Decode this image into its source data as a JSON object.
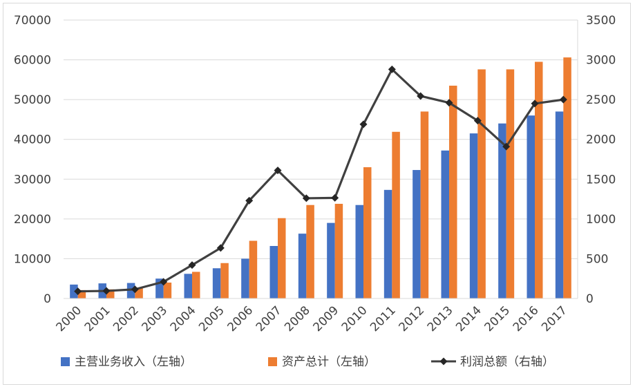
{
  "chart_data": {
    "type": "bar",
    "categories": [
      "2000",
      "2001",
      "2002",
      "2003",
      "2004",
      "2005",
      "2006",
      "2007",
      "2008",
      "2009",
      "2010",
      "2011",
      "2012",
      "2013",
      "2014",
      "2015",
      "2016",
      "2017"
    ],
    "series": [
      {
        "name": "主营业务收入（左轴）",
        "type": "bar",
        "axis": "left",
        "color": "#4472c4",
        "values": [
          3500,
          3800,
          3900,
          5000,
          6200,
          7600,
          10000,
          13200,
          16300,
          19000,
          23500,
          27300,
          32300,
          37200,
          41500,
          44000,
          46000,
          47000
        ]
      },
      {
        "name": "资产总计（左轴）",
        "type": "bar",
        "axis": "left",
        "color": "#ed7d31",
        "values": [
          2100,
          2300,
          2700,
          4000,
          6700,
          8900,
          14500,
          20200,
          23500,
          23800,
          33000,
          41900,
          47000,
          53500,
          57600,
          57600,
          59500,
          60600
        ]
      },
      {
        "name": "利润总额（右轴）",
        "type": "line",
        "axis": "right",
        "color": "#404040",
        "values": [
          90,
          95,
          115,
          210,
          420,
          635,
          1230,
          1610,
          1260,
          1265,
          2190,
          2880,
          2545,
          2460,
          2235,
          1910,
          2450,
          2500
        ]
      }
    ],
    "yleft": {
      "min": 0,
      "max": 70000,
      "step": 10000,
      "ticks": [
        "0",
        "10000",
        "20000",
        "30000",
        "40000",
        "50000",
        "60000",
        "70000"
      ]
    },
    "yright": {
      "min": 0,
      "max": 3500,
      "step": 500,
      "ticks": [
        "0",
        "500",
        "1000",
        "1500",
        "2000",
        "2500",
        "3000",
        "3500"
      ]
    },
    "grid": true,
    "legend_position": "bottom"
  }
}
